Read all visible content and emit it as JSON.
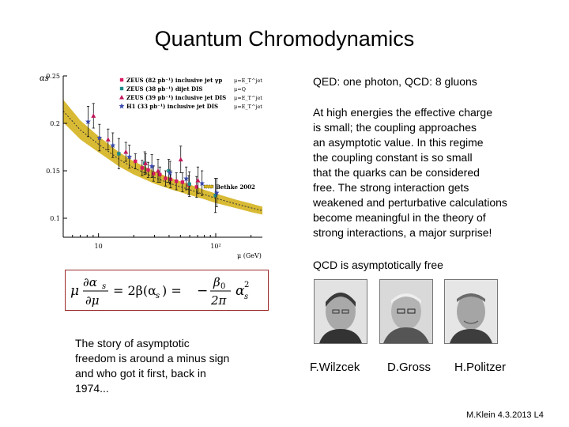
{
  "slide": {
    "title": "Quantum Chromodynamics",
    "qed_line": "QED: one photon, QCD: 8 gluons",
    "paragraph_lines": [
      "At high energies the effective charge",
      "is small; the coupling approaches",
      "an asymptotic value. In this regime",
      "the coupling constant is so small",
      "that the quarks can be considered",
      "free. The strong interaction gets",
      "weakened and perturbative calculations",
      "become meaningful in the theory of",
      "strong interactions, a major surprise!"
    ],
    "asymptotic_line": "QCD is asymptotically free",
    "story_lines": [
      "The story of asymptotic",
      "freedom is around a minus sign",
      "and who got it first, back in",
      "1974..."
    ],
    "names": [
      "F.Wilzcek",
      "D.Gross",
      "H.Politzer"
    ],
    "footer": "M.Klein 4.3.2013  L4"
  },
  "formula": {
    "lhs_num": "∂α",
    "lhs_num_sub": "s",
    "lhs_den": "∂μ",
    "mu": "μ",
    "middle": "= 2β(α",
    "middle_sub": "s",
    "middle_close": ") =",
    "minus": "−",
    "beta_num": "β",
    "beta_sub": "0",
    "pi_den": "2π",
    "alpha": "α",
    "alpha_sup": "2",
    "alpha_sub": "s"
  },
  "chart_data": {
    "type": "scatter",
    "ylabel": "αs",
    "xlabel": "μ (GeV)",
    "x_log": true,
    "xlim": [
      5,
      250
    ],
    "ylim": [
      0.08,
      0.25
    ],
    "y_ticks": [
      "0.25",
      "0.2",
      "0.15",
      "0.1"
    ],
    "y_tick_values": [
      0.25,
      0.2,
      0.15,
      0.1
    ],
    "x_ticks": [
      "10",
      "10²"
    ],
    "x_tick_values": [
      10,
      100
    ],
    "legend": [
      {
        "label": "ZEUS (82 pb⁻¹) inclusive jet γp",
        "extra": "μ=E_T^jet",
        "color": "#d81b60",
        "marker": "square"
      },
      {
        "label": "ZEUS (38 pb⁻¹) dijet DIS",
        "extra": "μ=Q",
        "color": "#1e8a8a",
        "marker": "square"
      },
      {
        "label": "ZEUS (39 pb⁻¹) inclusive jet DIS",
        "extra": "μ=E_T^jet",
        "color": "#c2185b",
        "marker": "triangle"
      },
      {
        "label": "H1 (33 pb⁻¹) inclusive jet DIS",
        "extra": "μ=E_T^jet",
        "color": "#3949ab",
        "marker": "star"
      }
    ],
    "band_label": "Bethke 2002",
    "band_color": "#d4b21e",
    "band": {
      "x": [
        5,
        7,
        10,
        15,
        20,
        30,
        40,
        60,
        80,
        100,
        150,
        200,
        250
      ],
      "center": [
        0.213,
        0.193,
        0.178,
        0.162,
        0.153,
        0.143,
        0.137,
        0.13,
        0.125,
        0.121,
        0.115,
        0.111,
        0.108
      ],
      "half_width": [
        0.012,
        0.01,
        0.0085,
        0.0075,
        0.007,
        0.0065,
        0.006,
        0.0055,
        0.005,
        0.005,
        0.0045,
        0.0045,
        0.0042
      ]
    },
    "series": [
      {
        "name": "ZEUS (82 pb⁻¹) inclusive jet γp",
        "color": "#d81b60",
        "marker": "square",
        "x": [
          21,
          24,
          27,
          30,
          34,
          38,
          42,
          47,
          53,
          60,
          70
        ],
        "y": [
          0.16,
          0.153,
          0.151,
          0.147,
          0.146,
          0.142,
          0.141,
          0.139,
          0.138,
          0.135,
          0.133
        ],
        "err": [
          0.008,
          0.008,
          0.008,
          0.008,
          0.008,
          0.008,
          0.009,
          0.009,
          0.01,
          0.01,
          0.011
        ]
      },
      {
        "name": "ZEUS (38 pb⁻¹) dijet DIS",
        "color": "#1e8a8a",
        "marker": "square",
        "x": [
          15,
          25,
          40,
          60,
          100
        ],
        "y": [
          0.168,
          0.158,
          0.15,
          0.136,
          0.124
        ],
        "err": [
          0.016,
          0.012,
          0.012,
          0.013,
          0.018
        ]
      },
      {
        "name": "ZEUS (39 pb⁻¹) inclusive jet DIS",
        "color": "#c2185b",
        "marker": "triangle",
        "x": [
          9,
          12,
          17,
          25,
          32,
          50,
          70
        ],
        "y": [
          0.208,
          0.183,
          0.17,
          0.158,
          0.15,
          0.162,
          0.14
        ],
        "err": [
          0.013,
          0.011,
          0.01,
          0.01,
          0.012,
          0.014,
          0.014
        ]
      },
      {
        "name": "H1 (33 pb⁻¹) inclusive jet DIS",
        "color": "#3949ab",
        "marker": "star",
        "x": [
          8,
          10,
          13,
          18,
          28,
          40,
          55,
          75,
          100
        ],
        "y": [
          0.202,
          0.185,
          0.177,
          0.165,
          0.155,
          0.148,
          0.142,
          0.137,
          0.127
        ],
        "err": [
          0.016,
          0.014,
          0.013,
          0.012,
          0.012,
          0.012,
          0.012,
          0.013,
          0.015
        ]
      }
    ]
  }
}
